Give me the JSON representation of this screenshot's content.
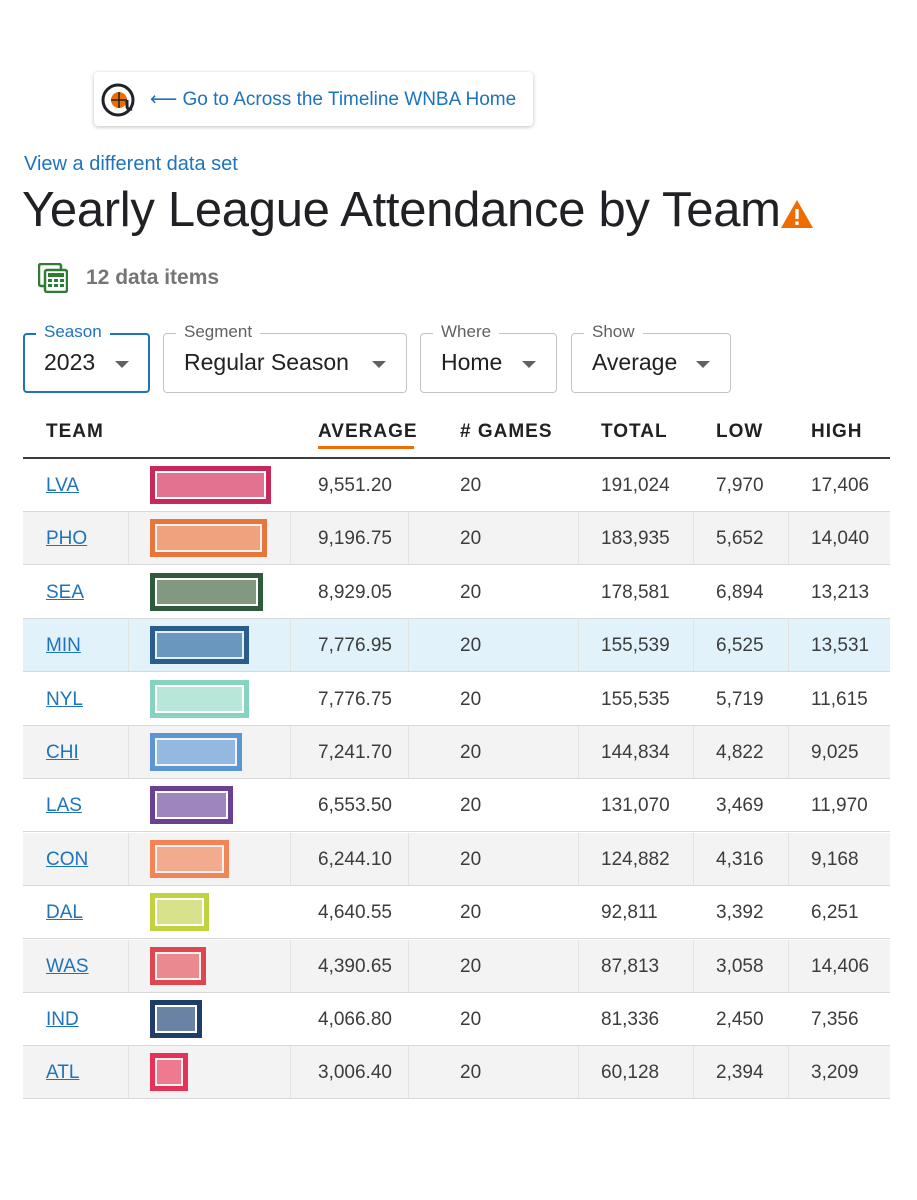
{
  "home_card": {
    "logo_icon": "at-basketball-logo-icon",
    "link_text": "⟵ Go to Across the Timeline WNBA Home"
  },
  "dataset_link": "View a different data set",
  "title": "Yearly League Attendance by Team",
  "warning_icon": "warning-triangle-icon",
  "items": {
    "icon": "calculator-grid-icon",
    "count_text": "12 data items"
  },
  "filters": {
    "season": {
      "label": "Season",
      "value": "2023"
    },
    "segment": {
      "label": "Segment",
      "value": "Regular Season"
    },
    "where": {
      "label": "Where",
      "value": "Home"
    },
    "show": {
      "label": "Show",
      "value": "Average"
    }
  },
  "headers": {
    "team": "TEAM",
    "average": "AVERAGE",
    "games": "# GAMES",
    "total": "TOTAL",
    "low": "LOW",
    "high": "HIGH"
  },
  "sorted_by": "AVERAGE",
  "max_average": 9551.2,
  "rows": [
    {
      "team": "LVA",
      "average": "9,551.20",
      "avg_value": 9551.2,
      "games": "20",
      "total": "191,024",
      "low": "7,970",
      "high": "17,406",
      "border_color": "#c8285a",
      "fill_color": "#e2728f"
    },
    {
      "team": "PHO",
      "average": "9,196.75",
      "avg_value": 9196.75,
      "games": "20",
      "total": "183,935",
      "low": "5,652",
      "high": "14,040",
      "border_color": "#e8763a",
      "fill_color": "#f0a27c"
    },
    {
      "team": "SEA",
      "average": "8,929.05",
      "avg_value": 8929.05,
      "games": "20",
      "total": "178,581",
      "low": "6,894",
      "high": "13,213",
      "border_color": "#2f5a3c",
      "fill_color": "#82997f"
    },
    {
      "team": "MIN",
      "average": "7,776.95",
      "avg_value": 7776.95,
      "games": "20",
      "total": "155,539",
      "low": "6,525",
      "high": "13,531",
      "border_color": "#2a5c8e",
      "fill_color": "#6a97bd"
    },
    {
      "team": "NYL",
      "average": "7,776.75",
      "avg_value": 7776.75,
      "games": "20",
      "total": "155,535",
      "low": "5,719",
      "high": "11,615",
      "border_color": "#86d3c0",
      "fill_color": "#b8e6d9"
    },
    {
      "team": "CHI",
      "average": "7,241.70",
      "avg_value": 7241.7,
      "games": "20",
      "total": "144,834",
      "low": "4,822",
      "high": "9,025",
      "border_color": "#5b95d2",
      "fill_color": "#93b8e2"
    },
    {
      "team": "LAS",
      "average": "6,553.50",
      "avg_value": 6553.5,
      "games": "20",
      "total": "131,070",
      "low": "3,469",
      "high": "11,970",
      "border_color": "#6b3f92",
      "fill_color": "#9f85bd"
    },
    {
      "team": "CON",
      "average": "6,244.10",
      "avg_value": 6244.1,
      "games": "20",
      "total": "124,882",
      "low": "4,316",
      "high": "9,168",
      "border_color": "#f28455",
      "fill_color": "#f3ab8e"
    },
    {
      "team": "DAL",
      "average": "4,640.55",
      "avg_value": 4640.55,
      "games": "20",
      "total": "92,811",
      "low": "3,392",
      "high": "6,251",
      "border_color": "#c1d13f",
      "fill_color": "#d8e28a"
    },
    {
      "team": "WAS",
      "average": "4,390.65",
      "avg_value": 4390.65,
      "games": "20",
      "total": "87,813",
      "low": "3,058",
      "high": "14,406",
      "border_color": "#e0464f",
      "fill_color": "#ea8a8e"
    },
    {
      "team": "IND",
      "average": "4,066.80",
      "avg_value": 4066.8,
      "games": "20",
      "total": "81,336",
      "low": "2,450",
      "high": "7,356",
      "border_color": "#1f3d6b",
      "fill_color": "#6a82a3"
    },
    {
      "team": "ATL",
      "average": "3,006.40",
      "avg_value": 3006.4,
      "games": "20",
      "total": "60,128",
      "low": "2,394",
      "high": "3,209",
      "border_color": "#e63256",
      "fill_color": "#ef7a90"
    }
  ]
}
